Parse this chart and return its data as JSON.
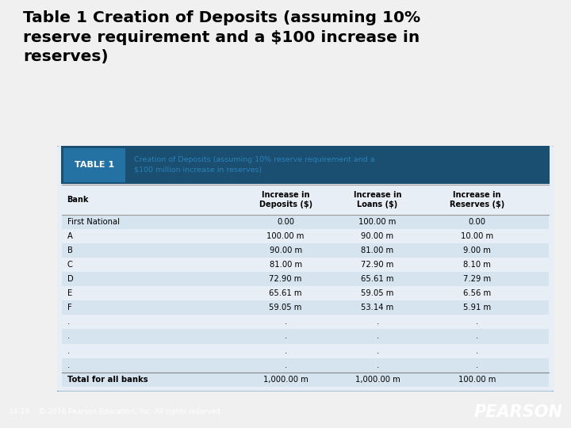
{
  "title": "Table 1 Creation of Deposits (assuming 10%\nreserve requirement and a $100 increase in\nreserves)",
  "table_label": "TABLE 1",
  "table_subtitle": "Creation of Deposits (assuming 10% reserve requirement and a\n$100 million increase in reserves)",
  "col_headers": [
    "Bank",
    "Increase in\nDeposits ($)",
    "Increase in\nLoans ($)",
    "Increase in\nReserves ($)"
  ],
  "rows": [
    [
      "First National",
      "0.00",
      "100.00 m",
      "0.00"
    ],
    [
      "A",
      "100.00 m",
      "90.00 m",
      "10.00 m"
    ],
    [
      "B",
      "90.00 m",
      "81.00 m",
      "9.00 m"
    ],
    [
      "C",
      "81.00 m",
      "72.90 m",
      "8.10 m"
    ],
    [
      "D",
      "72.90 m",
      "65.61 m",
      "7.29 m"
    ],
    [
      "E",
      "65.61 m",
      "59.05 m",
      "6.56 m"
    ],
    [
      "F",
      "59.05 m",
      "53.14 m",
      "5.91 m"
    ],
    [
      ".",
      ".",
      ".",
      "."
    ],
    [
      ".",
      ".",
      ".",
      "."
    ],
    [
      ".",
      ".",
      ".",
      "."
    ],
    [
      ".",
      ".",
      ".",
      "."
    ]
  ],
  "total_row": [
    "Total for all banks",
    "1,000.00 m",
    "1,000.00 m",
    "100.00 m"
  ],
  "footer_left": "14-19    © 2016 Pearson Education, Inc. All rights reserved.",
  "footer_right": "PEARSON",
  "page_bg": "#f0f0f0",
  "table_bg": "#e8eef5",
  "header_bg": "#1a4f72",
  "table_border_color": "#2471a3",
  "title_color": "#000000",
  "row_alt_color": "#d6e4f0",
  "row_normal_color": "#e8eef5",
  "footer_bg": "#1a3a5c",
  "footer_text_color": "#ffffff",
  "table_title_color": "#2980b9",
  "label_box_color": "#2471a3"
}
